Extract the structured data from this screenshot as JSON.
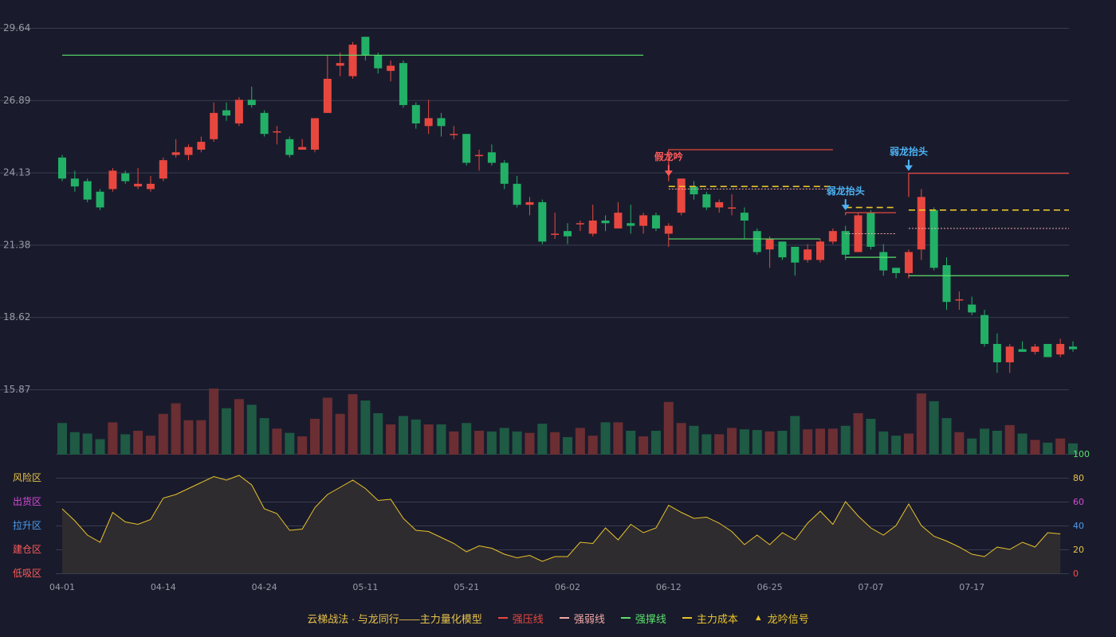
{
  "colors": {
    "background": "#191b2c",
    "grid": "#3a3d50",
    "axis_text": "#9a9aa6",
    "up": "#e8473f",
    "down": "#22b067",
    "up_volume": "#6b2e33",
    "down_volume": "#1e5a44",
    "pressure": "#e8473f",
    "weak": "#f2a9a6",
    "support": "#5be06a",
    "cost": "#e8c22a",
    "oscillator": "#e8c22a",
    "oscillator_fill": "#2f2c2f",
    "signal_fake": "#ff5a5a",
    "signal_weak": "#4db3f5",
    "right_axis_100": "#5be06a",
    "right_axis_80": "#e8c24a",
    "right_axis_60": "#d54ad8",
    "right_axis_40": "#4a9cf2",
    "right_axis_20": "#e8c24a",
    "right_axis_0": "#ff4a4a"
  },
  "chart_data": {
    "type": "candlestick",
    "title": "",
    "price_axis": {
      "ticks": [
        "29.64",
        "26.89",
        "24.13",
        "21.38",
        "18.62",
        "15.87"
      ],
      "range": [
        15.87,
        29.64
      ]
    },
    "x_tick_labels": [
      {
        "index": 0,
        "label": "04-01"
      },
      {
        "index": 8,
        "label": "04-14"
      },
      {
        "index": 16,
        "label": "04-24"
      },
      {
        "index": 24,
        "label": "05-11"
      },
      {
        "index": 32,
        "label": "05-21"
      },
      {
        "index": 40,
        "label": "06-02"
      },
      {
        "index": 48,
        "label": "06-12"
      },
      {
        "index": 56,
        "label": "06-25"
      },
      {
        "index": 64,
        "label": "07-07"
      },
      {
        "index": 72,
        "label": "07-17"
      }
    ],
    "candles": [
      [
        24.7,
        23.9,
        24.8,
        23.8
      ],
      [
        23.9,
        23.6,
        24.2,
        23.4
      ],
      [
        23.8,
        23.1,
        23.9,
        23.0
      ],
      [
        23.4,
        22.8,
        23.5,
        22.7
      ],
      [
        23.5,
        24.2,
        24.3,
        23.4
      ],
      [
        24.1,
        23.8,
        24.2,
        23.7
      ],
      [
        23.6,
        23.7,
        24.3,
        23.5
      ],
      [
        23.5,
        23.7,
        24.0,
        23.4
      ],
      [
        23.9,
        24.6,
        24.7,
        23.8
      ],
      [
        24.8,
        24.9,
        25.4,
        24.7
      ],
      [
        24.8,
        25.1,
        25.2,
        24.6
      ],
      [
        25.0,
        25.3,
        25.5,
        24.9
      ],
      [
        25.4,
        26.4,
        26.8,
        25.3
      ],
      [
        26.5,
        26.3,
        26.8,
        26.1
      ],
      [
        26.0,
        26.9,
        27.0,
        25.9
      ],
      [
        26.9,
        26.7,
        27.4,
        26.6
      ],
      [
        26.4,
        25.6,
        26.5,
        25.5
      ],
      [
        25.7,
        25.7,
        25.9,
        25.2
      ],
      [
        25.4,
        24.8,
        25.5,
        24.7
      ],
      [
        25.0,
        25.1,
        25.4,
        25.0
      ],
      [
        25.0,
        26.2,
        26.2,
        24.9
      ],
      [
        26.4,
        27.7,
        28.6,
        26.4
      ],
      [
        28.2,
        28.3,
        28.7,
        27.8
      ],
      [
        27.8,
        29.0,
        29.1,
        27.7
      ],
      [
        29.3,
        28.6,
        29.3,
        28.4
      ],
      [
        28.6,
        28.1,
        28.7,
        27.9
      ],
      [
        28.0,
        28.2,
        28.4,
        27.6
      ],
      [
        28.3,
        26.7,
        28.4,
        26.6
      ],
      [
        26.7,
        26.0,
        26.8,
        25.8
      ],
      [
        25.9,
        26.2,
        26.9,
        25.6
      ],
      [
        26.2,
        25.9,
        26.4,
        25.5
      ],
      [
        25.6,
        25.6,
        25.9,
        25.4
      ],
      [
        25.6,
        24.5,
        25.6,
        24.4
      ],
      [
        24.8,
        24.8,
        25.0,
        24.2
      ],
      [
        24.9,
        24.5,
        25.2,
        24.4
      ],
      [
        24.5,
        23.7,
        24.6,
        23.5
      ],
      [
        23.7,
        22.9,
        24.0,
        22.8
      ],
      [
        22.9,
        23.0,
        23.2,
        22.5
      ],
      [
        23.0,
        21.5,
        23.1,
        21.4
      ],
      [
        21.8,
        21.8,
        22.6,
        21.6
      ],
      [
        21.9,
        21.7,
        22.2,
        21.4
      ],
      [
        22.2,
        22.2,
        22.3,
        21.9
      ],
      [
        21.8,
        22.3,
        22.9,
        21.7
      ],
      [
        22.3,
        22.2,
        22.5,
        21.9
      ],
      [
        22.0,
        22.6,
        23.0,
        22.0
      ],
      [
        22.2,
        22.1,
        22.9,
        21.8
      ],
      [
        22.1,
        22.5,
        22.6,
        21.8
      ],
      [
        22.5,
        22.0,
        22.6,
        21.9
      ],
      [
        21.8,
        22.1,
        22.2,
        21.3
      ],
      [
        22.6,
        23.9,
        23.9,
        22.5
      ],
      [
        23.6,
        23.3,
        23.8,
        23.1
      ],
      [
        23.3,
        22.8,
        23.4,
        22.7
      ],
      [
        22.8,
        23.0,
        23.1,
        22.6
      ],
      [
        22.8,
        22.8,
        23.3,
        22.5
      ],
      [
        22.6,
        22.3,
        22.8,
        21.6
      ],
      [
        21.9,
        21.1,
        22.0,
        21.0
      ],
      [
        21.2,
        21.6,
        21.7,
        20.5
      ],
      [
        21.5,
        20.9,
        21.5,
        20.8
      ],
      [
        21.3,
        20.7,
        21.3,
        20.2
      ],
      [
        20.8,
        21.2,
        21.4,
        20.7
      ],
      [
        20.8,
        21.5,
        21.6,
        20.7
      ],
      [
        21.5,
        21.9,
        22.0,
        21.4
      ],
      [
        21.9,
        21.0,
        22.1,
        20.8
      ],
      [
        21.1,
        22.5,
        22.6,
        21.1
      ],
      [
        22.6,
        21.3,
        22.7,
        21.2
      ],
      [
        21.1,
        20.4,
        21.4,
        20.2
      ],
      [
        20.5,
        20.3,
        20.5,
        20.1
      ],
      [
        20.3,
        21.1,
        21.2,
        20.1
      ],
      [
        21.2,
        23.2,
        23.5,
        20.8
      ],
      [
        22.7,
        20.5,
        22.8,
        20.4
      ],
      [
        20.6,
        19.2,
        20.9,
        18.9
      ],
      [
        19.3,
        19.3,
        19.6,
        18.9
      ],
      [
        19.1,
        18.8,
        19.4,
        18.7
      ],
      [
        18.7,
        17.6,
        18.9,
        17.5
      ],
      [
        17.6,
        16.9,
        18.0,
        16.5
      ],
      [
        16.9,
        17.5,
        17.6,
        16.5
      ],
      [
        17.4,
        17.3,
        17.7,
        17.3
      ],
      [
        17.3,
        17.5,
        17.6,
        17.2
      ],
      [
        17.6,
        17.1,
        17.6,
        17.1
      ],
      [
        17.2,
        17.6,
        17.8,
        17.1
      ],
      [
        17.5,
        17.4,
        17.7,
        17.3
      ]
    ],
    "volume": [
      4.5,
      3.2,
      3.0,
      2.2,
      4.6,
      2.9,
      3.4,
      2.7,
      5.8,
      7.3,
      4.9,
      4.9,
      9.4,
      6.6,
      7.9,
      7.1,
      5.2,
      3.7,
      3.1,
      2.6,
      5.1,
      8.1,
      5.8,
      8.6,
      7.7,
      5.9,
      4.3,
      5.5,
      5.0,
      4.3,
      4.3,
      3.3,
      4.5,
      3.4,
      3.3,
      3.8,
      3.3,
      3.1,
      4.4,
      3.2,
      2.5,
      3.8,
      2.7,
      4.6,
      4.6,
      3.4,
      2.6,
      3.4,
      7.5,
      4.5,
      4.1,
      2.9,
      2.9,
      3.8,
      3.6,
      3.5,
      3.3,
      3.4,
      5.5,
      3.6,
      3.7,
      3.7,
      4.1,
      5.9,
      5.1,
      3.3,
      2.7,
      3.0,
      8.7,
      7.6,
      5.2,
      3.2,
      2.3,
      3.7,
      3.4,
      4.2,
      3.0,
      2.1,
      1.7,
      2.3,
      1.6
    ],
    "oscillator": {
      "right_axis_ticks": [
        "100",
        "80",
        "60",
        "40",
        "20",
        "0"
      ],
      "zones": [
        "风险区",
        "出货区",
        "拉升区",
        "建仓区",
        "低吸区"
      ],
      "values": [
        54,
        44,
        32,
        26,
        51,
        43,
        41,
        45,
        63,
        66,
        71,
        76,
        81,
        78,
        82,
        74,
        54,
        50,
        36,
        37,
        55,
        66,
        72,
        78,
        71,
        61,
        62,
        46,
        36,
        35,
        30,
        25,
        18,
        23,
        21,
        16,
        13,
        15,
        10,
        14,
        14,
        26,
        25,
        38,
        28,
        41,
        34,
        38,
        57,
        51,
        46,
        47,
        42,
        35,
        24,
        32,
        24,
        34,
        28,
        42,
        52,
        41,
        60,
        48,
        38,
        32,
        40,
        58,
        40,
        31,
        27,
        22,
        16,
        14,
        22,
        20,
        26,
        22,
        34,
        33
      ]
    },
    "lines": {
      "support": [
        {
          "start": 0,
          "end": 46,
          "value": 28.6
        },
        {
          "start": 48,
          "end": 60,
          "value": 21.6
        },
        {
          "start": 62,
          "end": 66,
          "value": 20.9
        },
        {
          "start": 67,
          "end": 80,
          "value": 20.2
        }
      ],
      "pressure": [
        {
          "start": 48,
          "end": 61,
          "value": 25.0,
          "bracket_from": 23.8
        },
        {
          "start": 62,
          "end": 66,
          "value": 22.6,
          "bracket_from": 22.5
        },
        {
          "start": 67,
          "end": 80,
          "value": 24.1,
          "bracket_from": 23.2
        }
      ],
      "weak": [
        {
          "start": 48,
          "end": 61,
          "value": 23.5
        },
        {
          "start": 62,
          "end": 66,
          "value": 21.8
        },
        {
          "start": 67,
          "end": 80,
          "value": 22.0
        }
      ],
      "cost": [
        {
          "start": 48,
          "end": 61,
          "value": 23.6
        },
        {
          "start": 62,
          "end": 66,
          "value": 22.8
        },
        {
          "start": 67,
          "end": 80,
          "value": 22.7
        }
      ]
    },
    "signals": [
      {
        "index": 48,
        "label": "假龙吟",
        "kind": "fake",
        "price": 23.9
      },
      {
        "index": 62,
        "label": "弱龙抬头",
        "kind": "weak",
        "price": 22.6
      },
      {
        "index": 67,
        "label": "弱龙抬头",
        "kind": "weak",
        "price": 24.1
      }
    ]
  },
  "legend": {
    "title": "云梯战法 · 与龙同行——主力量化模型",
    "items": [
      {
        "label": "强压线",
        "color_key": "pressure",
        "style": "solid"
      },
      {
        "label": "强弱线",
        "color_key": "weak",
        "style": "dashed"
      },
      {
        "label": "强撑线",
        "color_key": "support",
        "style": "solid"
      },
      {
        "label": "主力成本",
        "color_key": "cost",
        "style": "dashed"
      },
      {
        "label": "龙吟信号",
        "color_key": "cost",
        "style": "triangle"
      }
    ]
  }
}
